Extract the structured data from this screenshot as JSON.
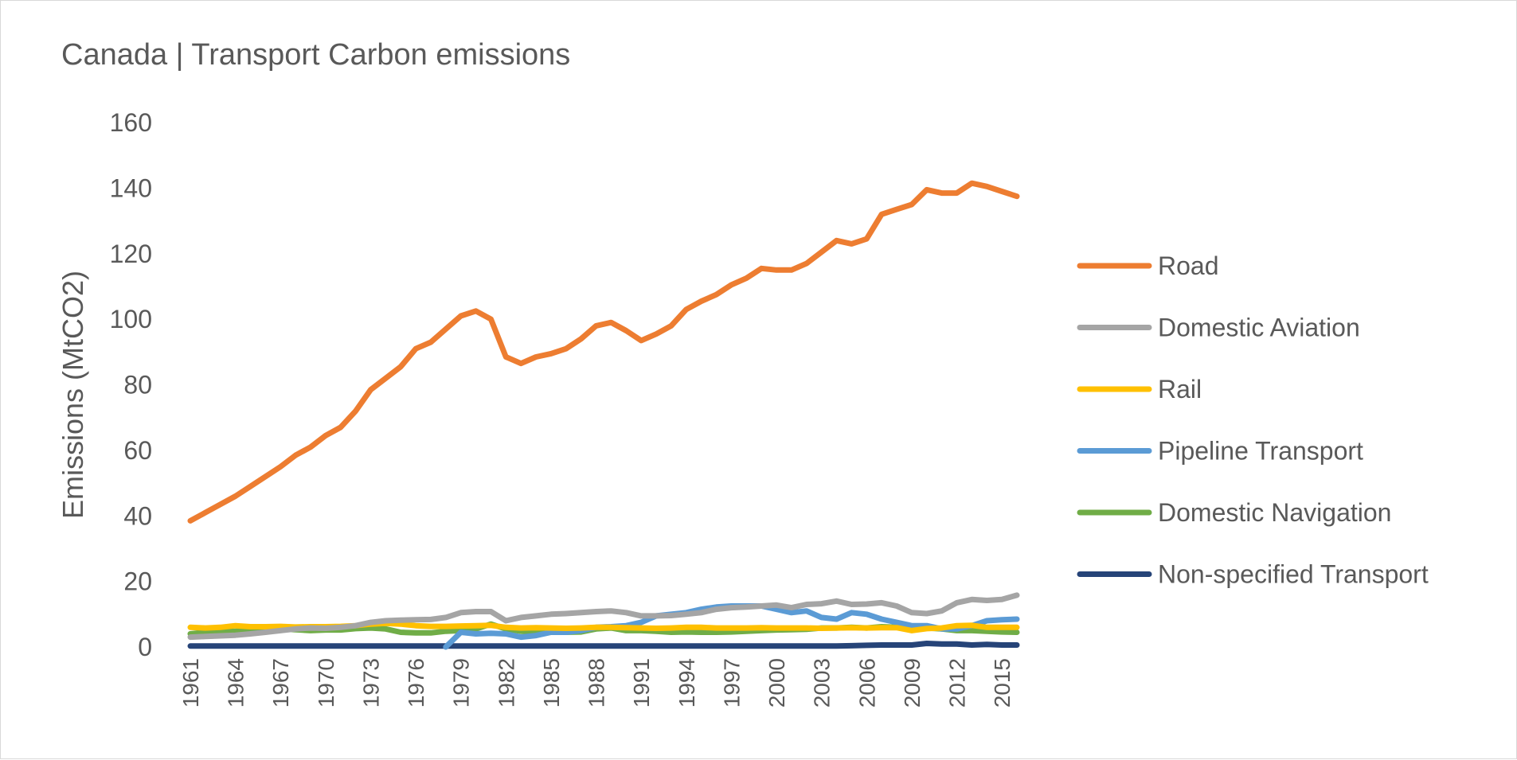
{
  "chart_data": {
    "type": "line",
    "title": "Canada | Transport Carbon emissions",
    "xlabel": "",
    "ylabel": "Emissions (MtCO2)",
    "ylim": [
      0,
      160
    ],
    "yticks": [
      "0",
      "20",
      "40",
      "60",
      "80",
      "100",
      "120",
      "140",
      "160"
    ],
    "xticks": [
      "1961",
      "1964",
      "1967",
      "1970",
      "1973",
      "1976",
      "1979",
      "1982",
      "1985",
      "1988",
      "1991",
      "1994",
      "1997",
      "2000",
      "2003",
      "2006",
      "2009",
      "2012",
      "2015"
    ],
    "x": [
      1961,
      1962,
      1963,
      1964,
      1965,
      1966,
      1967,
      1968,
      1969,
      1970,
      1971,
      1972,
      1973,
      1974,
      1975,
      1976,
      1977,
      1978,
      1979,
      1980,
      1981,
      1982,
      1983,
      1984,
      1985,
      1986,
      1987,
      1988,
      1989,
      1990,
      1991,
      1992,
      1993,
      1994,
      1995,
      1996,
      1997,
      1998,
      1999,
      2000,
      2001,
      2002,
      2003,
      2004,
      2005,
      2006,
      2007,
      2008,
      2009,
      2010,
      2011,
      2012,
      2013,
      2014,
      2015,
      2016
    ],
    "grid": false,
    "legend_position": "right",
    "series": [
      {
        "name": "Road",
        "color": "#ED7D31",
        "values": [
          38.5,
          41,
          43.5,
          46,
          49,
          52,
          55,
          58.5,
          61,
          64.5,
          67,
          72,
          78.5,
          82,
          85.5,
          91,
          93,
          97,
          101,
          102.5,
          100,
          88.5,
          86.5,
          88.5,
          89.5,
          91,
          94,
          98,
          99,
          96.5,
          93.5,
          95.5,
          98,
          103,
          105.5,
          107.5,
          110.5,
          112.5,
          115.5,
          115,
          115,
          117,
          120.5,
          124,
          123,
          124.5,
          132,
          133.5,
          135,
          139.5,
          138.5,
          138.5,
          141.5,
          140.5,
          139,
          137.5
        ]
      },
      {
        "name": "Domestic Aviation",
        "color": "#A5A5A5",
        "values": [
          3,
          3.2,
          3.4,
          3.6,
          4,
          4.5,
          5,
          5.5,
          5.8,
          5.7,
          6,
          6.5,
          7.5,
          8,
          8.2,
          8.3,
          8.4,
          9,
          10.5,
          10.8,
          10.8,
          8,
          9,
          9.5,
          10,
          10.2,
          10.5,
          10.8,
          11,
          10.5,
          9.5,
          9.5,
          9.6,
          10,
          10.5,
          11.5,
          12,
          12.2,
          12.5,
          12.8,
          12,
          13,
          13.2,
          14,
          13,
          13.1,
          13.5,
          12.5,
          10.5,
          10.2,
          11,
          13.5,
          14.5,
          14.2,
          14.5,
          15.8
        ]
      },
      {
        "name": "Rail",
        "color": "#FFC000",
        "values": [
          6,
          5.8,
          6,
          6.5,
          6.2,
          6.2,
          6.3,
          6.1,
          6.2,
          6.2,
          6.3,
          6.5,
          7,
          7.2,
          7,
          6.5,
          6.3,
          6.3,
          6.4,
          6.5,
          6.6,
          6,
          5.8,
          5.9,
          5.8,
          5.7,
          5.8,
          6,
          6,
          5.9,
          5.8,
          5.7,
          5.8,
          6,
          6,
          5.8,
          5.8,
          5.8,
          5.9,
          5.8,
          5.8,
          5.8,
          5.7,
          5.8,
          5.9,
          5.8,
          5.9,
          5.9,
          5,
          5.6,
          5.8,
          6.5,
          6.6,
          6,
          6,
          6
        ]
      },
      {
        "name": "Pipeline Transport",
        "color": "#5B9BD5",
        "values": [
          null,
          null,
          null,
          null,
          null,
          null,
          null,
          null,
          null,
          null,
          null,
          null,
          null,
          null,
          null,
          null,
          null,
          0,
          4.5,
          4,
          4.2,
          4,
          3,
          3.5,
          4.5,
          4.5,
          5,
          6,
          6.2,
          6.5,
          7.5,
          9.5,
          10,
          10.5,
          11.5,
          12.2,
          12.5,
          12.5,
          12.5,
          11.5,
          10.5,
          11,
          9,
          8.5,
          10.5,
          10,
          8.5,
          7.5,
          6.5,
          6.5,
          5.5,
          5.5,
          6.5,
          8,
          8.3,
          8.5
        ]
      },
      {
        "name": "Domestic Navigation",
        "color": "#70AD47",
        "values": [
          4,
          4.5,
          4.6,
          4.8,
          5,
          5.3,
          5.5,
          5.3,
          5,
          5.2,
          5.2,
          5.6,
          5.8,
          5.5,
          4.5,
          4.3,
          4.3,
          4.8,
          5,
          5.5,
          7,
          5.5,
          4.8,
          4.6,
          4.5,
          4.5,
          4.6,
          5.5,
          5.8,
          5,
          5,
          4.8,
          4.5,
          4.6,
          4.5,
          4.5,
          4.6,
          4.8,
          5,
          5.2,
          5.3,
          5.4,
          5.8,
          5.8,
          6,
          5.8,
          6.2,
          6,
          5.8,
          5.8,
          5.5,
          5,
          5,
          4.8,
          4.6,
          4.5
        ]
      },
      {
        "name": "Non-specified Transport",
        "color": "#264478",
        "values": [
          0.3,
          0.3,
          0.3,
          0.3,
          0.3,
          0.3,
          0.3,
          0.3,
          0.3,
          0.3,
          0.3,
          0.3,
          0.3,
          0.3,
          0.3,
          0.3,
          0.3,
          0.3,
          0.3,
          0.3,
          0.3,
          0.3,
          0.3,
          0.3,
          0.3,
          0.3,
          0.3,
          0.3,
          0.3,
          0.3,
          0.3,
          0.3,
          0.3,
          0.3,
          0.3,
          0.3,
          0.3,
          0.3,
          0.3,
          0.3,
          0.3,
          0.3,
          0.3,
          0.3,
          0.4,
          0.5,
          0.6,
          0.6,
          0.6,
          1.1,
          0.9,
          0.9,
          0.6,
          0.8,
          0.6,
          0.6
        ]
      }
    ]
  }
}
